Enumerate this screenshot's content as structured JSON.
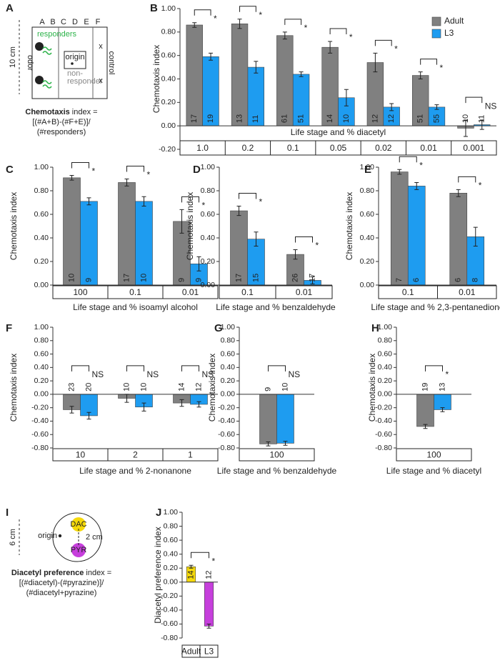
{
  "diagram_a": {
    "panel": "A",
    "columns": [
      "A",
      "B",
      "C",
      "D",
      "E",
      "F"
    ],
    "responders": "responders",
    "odor": "odor",
    "control": "control",
    "origin": "origin",
    "non_responder": [
      "non-",
      "responder"
    ],
    "marks": [
      "x",
      "x"
    ],
    "scale": "10 cm",
    "formula_name": "Chemotaxis",
    "formula_lines": [
      " index =",
      "[(#A+B)-(#F+E)]/",
      "(#responders)"
    ]
  },
  "diagram_i": {
    "panel": "I",
    "scale": "6 cm",
    "dac": "DAC",
    "pyr": "PYR",
    "origin": "origin",
    "distance": "2 cm",
    "formula_name": "Diacetyl preference",
    "formula_lines": [
      " index =",
      "[(#diacetyl)-(#pyrazine)]/",
      "(#diacetyl+pyrazine)"
    ]
  },
  "chart_data": [
    {
      "type": "bar",
      "panel": "B",
      "ylabel": "Chemotaxis index",
      "xlabel": "Life stage and % diacetyl",
      "legend": "top-right",
      "categories": [
        "1.0",
        "0.2",
        "0.1",
        "0.05",
        "0.02",
        "0.01",
        "0.001"
      ],
      "series": [
        {
          "name": "Adult",
          "color": "#808080",
          "values": [
            0.86,
            0.87,
            0.77,
            0.67,
            0.54,
            0.43,
            -0.02
          ],
          "errors": [
            0.02,
            0.04,
            0.03,
            0.05,
            0.08,
            0.03,
            0.07
          ],
          "n": [
            17,
            13,
            61,
            14,
            12,
            51,
            10
          ]
        },
        {
          "name": "L3",
          "color": "#1e9cf0",
          "values": [
            0.59,
            0.5,
            0.44,
            0.24,
            0.16,
            0.16,
            0.01
          ],
          "errors": [
            0.03,
            0.05,
            0.02,
            0.07,
            0.03,
            0.02,
            0.04
          ],
          "n": [
            19,
            11,
            51,
            10,
            12,
            55,
            11
          ]
        }
      ],
      "significance": [
        "*",
        "*",
        "*",
        "*",
        "*",
        "*",
        "NS"
      ],
      "ylim": [
        -0.2,
        1.0
      ],
      "yticks": [
        {
          "value": 1.0,
          "label": "1.00"
        },
        {
          "value": 0.8,
          "label": "0.80"
        },
        {
          "value": 0.6,
          "label": "0.60"
        },
        {
          "value": 0.4,
          "label": "0.40"
        },
        {
          "value": 0.2,
          "label": "0.20"
        },
        {
          "value": 0,
          "label": "0.00"
        },
        {
          "value": -0.2,
          "label": "-0.20"
        }
      ]
    },
    {
      "type": "bar",
      "panel": "C",
      "ylabel": "Chemotaxis index",
      "xlabel": "Life stage and % isoamyl alcohol",
      "categories": [
        "100",
        "0.1",
        "0.01"
      ],
      "series": [
        {
          "color": "#808080",
          "values": [
            0.91,
            0.87,
            0.54
          ],
          "errors": [
            0.02,
            0.03,
            0.1
          ],
          "n": [
            10,
            17,
            9
          ]
        },
        {
          "color": "#1e9cf0",
          "values": [
            0.71,
            0.71,
            0.18
          ],
          "errors": [
            0.03,
            0.04,
            0.06
          ],
          "n": [
            9,
            10,
            9
          ]
        }
      ],
      "significance": [
        "*",
        "*",
        "*"
      ],
      "ylim": [
        0,
        1.0
      ],
      "yticks": [
        {
          "value": 1.0,
          "label": "1.00"
        },
        {
          "value": 0.8,
          "label": "0.80"
        },
        {
          "value": 0.6,
          "label": "0.60"
        },
        {
          "value": 0.4,
          "label": "0.40"
        },
        {
          "value": 0.2,
          "label": "0.20"
        },
        {
          "value": 0,
          "label": "0.00"
        }
      ]
    },
    {
      "type": "bar",
      "panel": "D",
      "ylabel": "Chemotaxis index",
      "xlabel": "Life stage and % benzaldehyde",
      "categories": [
        "0.1",
        "0.01"
      ],
      "series": [
        {
          "color": "#808080",
          "values": [
            0.63,
            0.26
          ],
          "errors": [
            0.04,
            0.04
          ],
          "n": [
            17,
            26
          ]
        },
        {
          "color": "#1e9cf0",
          "values": [
            0.39,
            0.04
          ],
          "errors": [
            0.06,
            0.03
          ],
          "n": [
            15,
            17
          ]
        }
      ],
      "significance": [
        "*",
        "*"
      ],
      "ylim": [
        0,
        1.0
      ],
      "yticks": [
        {
          "value": 1.0,
          "label": "1.00"
        },
        {
          "value": 0.8,
          "label": "0.80"
        },
        {
          "value": 0.6,
          "label": "0.60"
        },
        {
          "value": 0.4,
          "label": "0.40"
        },
        {
          "value": 0.2,
          "label": "0.20"
        },
        {
          "value": 0,
          "label": "0.00"
        }
      ]
    },
    {
      "type": "bar",
      "panel": "E",
      "ylabel": "Chemotaxis index",
      "xlabel": "Life stage and % 2,3-pentanedione",
      "categories": [
        "0.1",
        "0.01"
      ],
      "series": [
        {
          "color": "#808080",
          "values": [
            0.96,
            0.78
          ],
          "errors": [
            0.02,
            0.03
          ],
          "n": [
            7,
            6
          ]
        },
        {
          "color": "#1e9cf0",
          "values": [
            0.84,
            0.41
          ],
          "errors": [
            0.03,
            0.08
          ],
          "n": [
            6,
            8
          ]
        }
      ],
      "significance": [
        "*",
        "*"
      ],
      "ylim": [
        0,
        1.0
      ],
      "yticks": [
        {
          "value": 1.0,
          "label": "1.00"
        },
        {
          "value": 0.8,
          "label": "0.80"
        },
        {
          "value": 0.6,
          "label": "0.60"
        },
        {
          "value": 0.4,
          "label": "0.40"
        },
        {
          "value": 0.2,
          "label": "0.20"
        },
        {
          "value": 0,
          "label": "0.00"
        }
      ]
    },
    {
      "type": "bar",
      "panel": "F",
      "ylabel": "Chemotaxis index",
      "xlabel": "Life stage and % 2-nonanone",
      "categories": [
        "10",
        "2",
        "1"
      ],
      "series": [
        {
          "color": "#808080",
          "values": [
            -0.23,
            -0.06,
            -0.13
          ],
          "errors": [
            0.05,
            0.06,
            0.05
          ],
          "n": [
            23,
            10,
            14
          ]
        },
        {
          "color": "#1e9cf0",
          "values": [
            -0.32,
            -0.19,
            -0.15
          ],
          "errors": [
            0.05,
            0.06,
            0.04
          ],
          "n": [
            20,
            10,
            12
          ]
        }
      ],
      "significance": [
        "NS",
        "NS",
        "NS"
      ],
      "ylim": [
        -0.8,
        1.0
      ],
      "yticks": [
        {
          "value": 1.0,
          "label": "1.00"
        },
        {
          "value": 0.8,
          "label": "0.80"
        },
        {
          "value": 0.6,
          "label": "0.60"
        },
        {
          "value": 0.4,
          "label": "0.40"
        },
        {
          "value": 0.2,
          "label": "0.20"
        },
        {
          "value": 0,
          "label": "0.00"
        },
        {
          "value": -0.2,
          "label": "-0.20"
        },
        {
          "value": -0.4,
          "label": "-0.40"
        },
        {
          "value": -0.6,
          "label": "-0.60"
        },
        {
          "value": -0.8,
          "label": "-0.80"
        }
      ]
    },
    {
      "type": "bar",
      "panel": "G",
      "ylabel": "Chemotaxis index",
      "xlabel": "Life stage and % benzaldehyde",
      "categories": [
        "100"
      ],
      "series": [
        {
          "color": "#808080",
          "values": [
            -0.74
          ],
          "errors": [
            0.03
          ],
          "n": [
            9
          ]
        },
        {
          "color": "#1e9cf0",
          "values": [
            -0.73
          ],
          "errors": [
            0.03
          ],
          "n": [
            10
          ]
        }
      ],
      "significance": [
        "NS"
      ],
      "ylim": [
        -0.8,
        1.0
      ],
      "yticks": [
        {
          "value": 1.0,
          "label": "1.00"
        },
        {
          "value": 0.8,
          "label": "0.80"
        },
        {
          "value": 0.6,
          "label": "0.60"
        },
        {
          "value": 0.4,
          "label": "0.40"
        },
        {
          "value": 0.2,
          "label": "0.20"
        },
        {
          "value": 0,
          "label": "0.00"
        },
        {
          "value": -0.2,
          "label": "-0.20"
        },
        {
          "value": -0.4,
          "label": "-0.40"
        },
        {
          "value": -0.6,
          "label": "-0.60"
        },
        {
          "value": -0.8,
          "label": "-0.80"
        }
      ]
    },
    {
      "type": "bar",
      "panel": "H",
      "ylabel": "Chemotaxis index",
      "xlabel": "Life stage and % diacetyl",
      "categories": [
        "100"
      ],
      "series": [
        {
          "color": "#808080",
          "values": [
            -0.48
          ],
          "errors": [
            0.03
          ],
          "n": [
            19
          ]
        },
        {
          "color": "#1e9cf0",
          "values": [
            -0.23
          ],
          "errors": [
            0.03
          ],
          "n": [
            13
          ]
        }
      ],
      "significance": [
        "*"
      ],
      "ylim": [
        -0.8,
        1.0
      ],
      "yticks": [
        {
          "value": 1.0,
          "label": "1.00"
        },
        {
          "value": 0.8,
          "label": "0.80"
        },
        {
          "value": 0.6,
          "label": "0.60"
        },
        {
          "value": 0.4,
          "label": "0.40"
        },
        {
          "value": 0.2,
          "label": "0.20"
        },
        {
          "value": 0,
          "label": "0.00"
        },
        {
          "value": -0.2,
          "label": "-0.20"
        },
        {
          "value": -0.4,
          "label": "-0.40"
        },
        {
          "value": -0.6,
          "label": "-0.60"
        },
        {
          "value": -0.8,
          "label": "-0.80"
        }
      ]
    },
    {
      "type": "bar",
      "panel": "J",
      "ylabel": "Diacetyl preference index",
      "categories": [
        "Adult",
        "L3"
      ],
      "values": [
        0.22,
        -0.63
      ],
      "errors": [
        0.02,
        0.03
      ],
      "n": [
        14,
        12
      ],
      "colors": [
        "#f5d90a",
        "#c63fdc"
      ],
      "significance": [
        "*"
      ],
      "ylim": [
        -0.8,
        1.0
      ],
      "yticks": [
        {
          "value": 1.0,
          "label": "1.00"
        },
        {
          "value": 0.8,
          "label": "0.80"
        },
        {
          "value": 0.6,
          "label": "0.60"
        },
        {
          "value": 0.4,
          "label": "0.40"
        },
        {
          "value": 0.2,
          "label": "0.20"
        },
        {
          "value": 0,
          "label": "0.00"
        },
        {
          "value": -0.2,
          "label": "-0.20"
        },
        {
          "value": -0.4,
          "label": "-0.40"
        },
        {
          "value": -0.6,
          "label": "-0.60"
        },
        {
          "value": -0.8,
          "label": "-0.80"
        }
      ]
    }
  ]
}
